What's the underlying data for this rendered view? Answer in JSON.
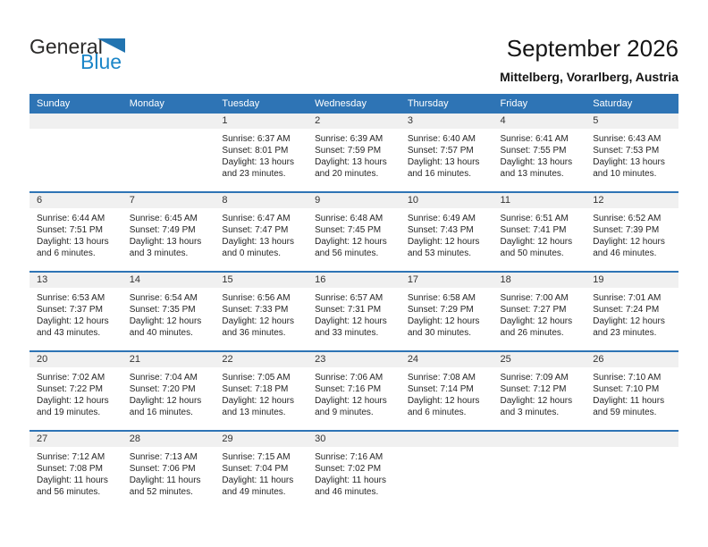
{
  "page": {
    "title": "September 2026",
    "subtitle": "Mittelberg, Vorarlberg, Austria"
  },
  "logo": {
    "part1": "General",
    "part2": "Blue",
    "triangle_icon": "logo-triangle"
  },
  "colors": {
    "header_blue": "#2E74B5",
    "band_gray": "#F0F0F0",
    "logo_dark": "#2B2A29",
    "logo_blue": "#1C86C8",
    "logo_triangle": "#2274B0"
  },
  "calendar": {
    "weekdays": [
      "Sunday",
      "Monday",
      "Tuesday",
      "Wednesday",
      "Thursday",
      "Friday",
      "Saturday"
    ],
    "weeks": [
      [
        null,
        null,
        {
          "day": "1",
          "sunrise": "Sunrise: 6:37 AM",
          "sunset": "Sunset: 8:01 PM",
          "daylight": "Daylight: 13 hours and 23 minutes."
        },
        {
          "day": "2",
          "sunrise": "Sunrise: 6:39 AM",
          "sunset": "Sunset: 7:59 PM",
          "daylight": "Daylight: 13 hours and 20 minutes."
        },
        {
          "day": "3",
          "sunrise": "Sunrise: 6:40 AM",
          "sunset": "Sunset: 7:57 PM",
          "daylight": "Daylight: 13 hours and 16 minutes."
        },
        {
          "day": "4",
          "sunrise": "Sunrise: 6:41 AM",
          "sunset": "Sunset: 7:55 PM",
          "daylight": "Daylight: 13 hours and 13 minutes."
        },
        {
          "day": "5",
          "sunrise": "Sunrise: 6:43 AM",
          "sunset": "Sunset: 7:53 PM",
          "daylight": "Daylight: 13 hours and 10 minutes."
        }
      ],
      [
        {
          "day": "6",
          "sunrise": "Sunrise: 6:44 AM",
          "sunset": "Sunset: 7:51 PM",
          "daylight": "Daylight: 13 hours and 6 minutes."
        },
        {
          "day": "7",
          "sunrise": "Sunrise: 6:45 AM",
          "sunset": "Sunset: 7:49 PM",
          "daylight": "Daylight: 13 hours and 3 minutes."
        },
        {
          "day": "8",
          "sunrise": "Sunrise: 6:47 AM",
          "sunset": "Sunset: 7:47 PM",
          "daylight": "Daylight: 13 hours and 0 minutes."
        },
        {
          "day": "9",
          "sunrise": "Sunrise: 6:48 AM",
          "sunset": "Sunset: 7:45 PM",
          "daylight": "Daylight: 12 hours and 56 minutes."
        },
        {
          "day": "10",
          "sunrise": "Sunrise: 6:49 AM",
          "sunset": "Sunset: 7:43 PM",
          "daylight": "Daylight: 12 hours and 53 minutes."
        },
        {
          "day": "11",
          "sunrise": "Sunrise: 6:51 AM",
          "sunset": "Sunset: 7:41 PM",
          "daylight": "Daylight: 12 hours and 50 minutes."
        },
        {
          "day": "12",
          "sunrise": "Sunrise: 6:52 AM",
          "sunset": "Sunset: 7:39 PM",
          "daylight": "Daylight: 12 hours and 46 minutes."
        }
      ],
      [
        {
          "day": "13",
          "sunrise": "Sunrise: 6:53 AM",
          "sunset": "Sunset: 7:37 PM",
          "daylight": "Daylight: 12 hours and 43 minutes."
        },
        {
          "day": "14",
          "sunrise": "Sunrise: 6:54 AM",
          "sunset": "Sunset: 7:35 PM",
          "daylight": "Daylight: 12 hours and 40 minutes."
        },
        {
          "day": "15",
          "sunrise": "Sunrise: 6:56 AM",
          "sunset": "Sunset: 7:33 PM",
          "daylight": "Daylight: 12 hours and 36 minutes."
        },
        {
          "day": "16",
          "sunrise": "Sunrise: 6:57 AM",
          "sunset": "Sunset: 7:31 PM",
          "daylight": "Daylight: 12 hours and 33 minutes."
        },
        {
          "day": "17",
          "sunrise": "Sunrise: 6:58 AM",
          "sunset": "Sunset: 7:29 PM",
          "daylight": "Daylight: 12 hours and 30 minutes."
        },
        {
          "day": "18",
          "sunrise": "Sunrise: 7:00 AM",
          "sunset": "Sunset: 7:27 PM",
          "daylight": "Daylight: 12 hours and 26 minutes."
        },
        {
          "day": "19",
          "sunrise": "Sunrise: 7:01 AM",
          "sunset": "Sunset: 7:24 PM",
          "daylight": "Daylight: 12 hours and 23 minutes."
        }
      ],
      [
        {
          "day": "20",
          "sunrise": "Sunrise: 7:02 AM",
          "sunset": "Sunset: 7:22 PM",
          "daylight": "Daylight: 12 hours and 19 minutes."
        },
        {
          "day": "21",
          "sunrise": "Sunrise: 7:04 AM",
          "sunset": "Sunset: 7:20 PM",
          "daylight": "Daylight: 12 hours and 16 minutes."
        },
        {
          "day": "22",
          "sunrise": "Sunrise: 7:05 AM",
          "sunset": "Sunset: 7:18 PM",
          "daylight": "Daylight: 12 hours and 13 minutes."
        },
        {
          "day": "23",
          "sunrise": "Sunrise: 7:06 AM",
          "sunset": "Sunset: 7:16 PM",
          "daylight": "Daylight: 12 hours and 9 minutes."
        },
        {
          "day": "24",
          "sunrise": "Sunrise: 7:08 AM",
          "sunset": "Sunset: 7:14 PM",
          "daylight": "Daylight: 12 hours and 6 minutes."
        },
        {
          "day": "25",
          "sunrise": "Sunrise: 7:09 AM",
          "sunset": "Sunset: 7:12 PM",
          "daylight": "Daylight: 12 hours and 3 minutes."
        },
        {
          "day": "26",
          "sunrise": "Sunrise: 7:10 AM",
          "sunset": "Sunset: 7:10 PM",
          "daylight": "Daylight: 11 hours and 59 minutes."
        }
      ],
      [
        {
          "day": "27",
          "sunrise": "Sunrise: 7:12 AM",
          "sunset": "Sunset: 7:08 PM",
          "daylight": "Daylight: 11 hours and 56 minutes."
        },
        {
          "day": "28",
          "sunrise": "Sunrise: 7:13 AM",
          "sunset": "Sunset: 7:06 PM",
          "daylight": "Daylight: 11 hours and 52 minutes."
        },
        {
          "day": "29",
          "sunrise": "Sunrise: 7:15 AM",
          "sunset": "Sunset: 7:04 PM",
          "daylight": "Daylight: 11 hours and 49 minutes."
        },
        {
          "day": "30",
          "sunrise": "Sunrise: 7:16 AM",
          "sunset": "Sunset: 7:02 PM",
          "daylight": "Daylight: 11 hours and 46 minutes."
        },
        null,
        null,
        null
      ]
    ]
  }
}
